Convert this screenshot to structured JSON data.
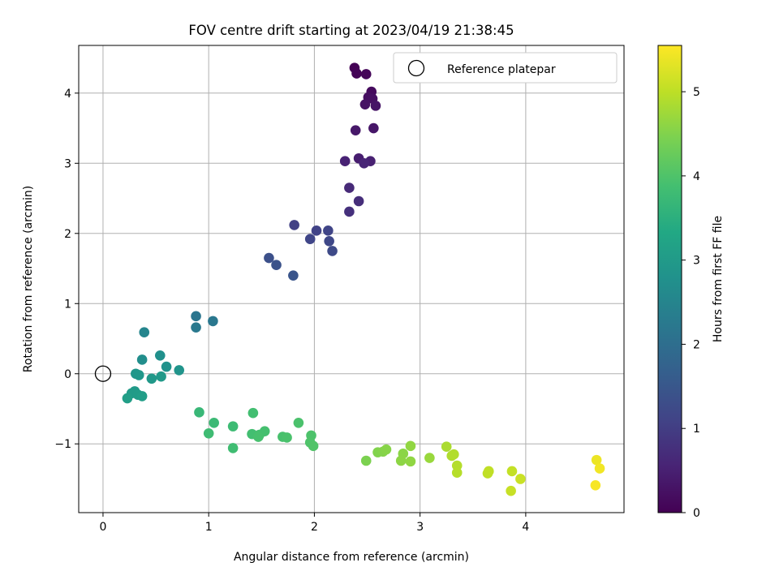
{
  "chart_data": {
    "type": "scatter",
    "title": "FOV centre drift starting at 2023/04/19 21:38:45",
    "xlabel": "Angular distance from reference (arcmin)",
    "ylabel": "Rotation from reference (arcmin)",
    "xlim": [
      -0.23,
      4.93
    ],
    "ylim": [
      -1.98,
      4.68
    ],
    "x_ticks": [
      0,
      1,
      2,
      3,
      4
    ],
    "y_ticks": [
      -1,
      0,
      1,
      2,
      3,
      4
    ],
    "grid": true,
    "legend": {
      "location": "top-right",
      "entries": [
        "Reference platepar"
      ]
    },
    "colorbar": {
      "label": "Hours from first FF file",
      "colormap": "viridis",
      "range": [
        0,
        5.55
      ],
      "ticks": [
        0,
        1,
        2,
        3,
        4,
        5
      ]
    },
    "reference_point": {
      "x": 0,
      "y": 0,
      "label": "Reference platepar"
    },
    "points": [
      [
        2.38,
        4.36,
        0.02
      ],
      [
        2.4,
        4.28,
        0.05
      ],
      [
        2.49,
        4.27,
        0.08
      ],
      [
        2.54,
        4.02,
        0.15
      ],
      [
        2.51,
        3.94,
        0.2
      ],
      [
        2.55,
        3.92,
        0.23
      ],
      [
        2.48,
        3.84,
        0.27
      ],
      [
        2.58,
        3.82,
        0.3
      ],
      [
        2.56,
        3.5,
        0.33
      ],
      [
        2.39,
        3.47,
        0.36
      ],
      [
        2.42,
        3.07,
        0.45
      ],
      [
        2.53,
        3.03,
        0.5
      ],
      [
        2.29,
        3.03,
        0.53
      ],
      [
        2.47,
        3.0,
        0.58
      ],
      [
        2.33,
        2.65,
        0.66
      ],
      [
        2.42,
        2.46,
        0.72
      ],
      [
        2.33,
        2.31,
        0.76
      ],
      [
        1.81,
        2.12,
        1.05
      ],
      [
        2.02,
        2.04,
        1.1
      ],
      [
        2.13,
        2.04,
        1.14
      ],
      [
        1.96,
        1.92,
        1.16
      ],
      [
        2.14,
        1.89,
        1.2
      ],
      [
        2.17,
        1.75,
        1.23
      ],
      [
        1.57,
        1.65,
        1.35
      ],
      [
        1.64,
        1.55,
        1.4
      ],
      [
        1.8,
        1.4,
        1.45
      ],
      [
        0.88,
        0.82,
        2.15
      ],
      [
        1.04,
        0.75,
        2.2
      ],
      [
        0.88,
        0.66,
        2.25
      ],
      [
        0.39,
        0.59,
        2.5
      ],
      [
        0.37,
        0.2,
        2.7
      ],
      [
        0.54,
        0.26,
        2.75
      ],
      [
        0.6,
        0.1,
        2.8
      ],
      [
        0.72,
        0.05,
        2.85
      ],
      [
        0.31,
        0.0,
        2.9
      ],
      [
        0.34,
        -0.02,
        2.92
      ],
      [
        0.46,
        -0.07,
        2.95
      ],
      [
        0.55,
        -0.04,
        2.97
      ],
      [
        0.3,
        -0.25,
        3.0
      ],
      [
        0.27,
        -0.28,
        3.02
      ],
      [
        0.33,
        -0.3,
        3.05
      ],
      [
        0.37,
        -0.32,
        3.08
      ],
      [
        0.23,
        -0.35,
        3.1
      ],
      [
        0.91,
        -0.55,
        3.7
      ],
      [
        1.05,
        -0.7,
        3.75
      ],
      [
        1.23,
        -0.75,
        3.78
      ],
      [
        1.0,
        -0.85,
        3.8
      ],
      [
        1.23,
        -1.06,
        3.82
      ],
      [
        1.42,
        -0.56,
        3.85
      ],
      [
        1.41,
        -0.86,
        3.87
      ],
      [
        1.48,
        -0.87,
        3.88
      ],
      [
        1.53,
        -0.82,
        3.9
      ],
      [
        1.47,
        -0.9,
        3.92
      ],
      [
        1.7,
        -0.9,
        3.93
      ],
      [
        1.74,
        -0.91,
        3.95
      ],
      [
        1.85,
        -0.7,
        3.96
      ],
      [
        1.97,
        -0.88,
        3.98
      ],
      [
        1.96,
        -0.98,
        4.0
      ],
      [
        1.99,
        -1.03,
        4.02
      ],
      [
        2.49,
        -1.24,
        4.45
      ],
      [
        2.6,
        -1.12,
        4.5
      ],
      [
        2.65,
        -1.11,
        4.52
      ],
      [
        2.68,
        -1.08,
        4.55
      ],
      [
        2.84,
        -1.14,
        4.58
      ],
      [
        2.82,
        -1.24,
        4.6
      ],
      [
        2.91,
        -1.25,
        4.62
      ],
      [
        2.91,
        -1.03,
        4.63
      ],
      [
        3.09,
        -1.2,
        4.7
      ],
      [
        3.25,
        -1.04,
        4.85
      ],
      [
        3.3,
        -1.17,
        4.88
      ],
      [
        3.32,
        -1.15,
        4.9
      ],
      [
        3.35,
        -1.31,
        4.92
      ],
      [
        3.35,
        -1.41,
        4.94
      ],
      [
        3.64,
        -1.42,
        5.0
      ],
      [
        3.65,
        -1.39,
        5.02
      ],
      [
        3.87,
        -1.39,
        5.05
      ],
      [
        3.86,
        -1.67,
        5.08
      ],
      [
        3.95,
        -1.5,
        5.1
      ],
      [
        4.67,
        -1.23,
        5.4
      ],
      [
        4.7,
        -1.35,
        5.45
      ],
      [
        4.66,
        -1.59,
        5.5
      ]
    ]
  }
}
